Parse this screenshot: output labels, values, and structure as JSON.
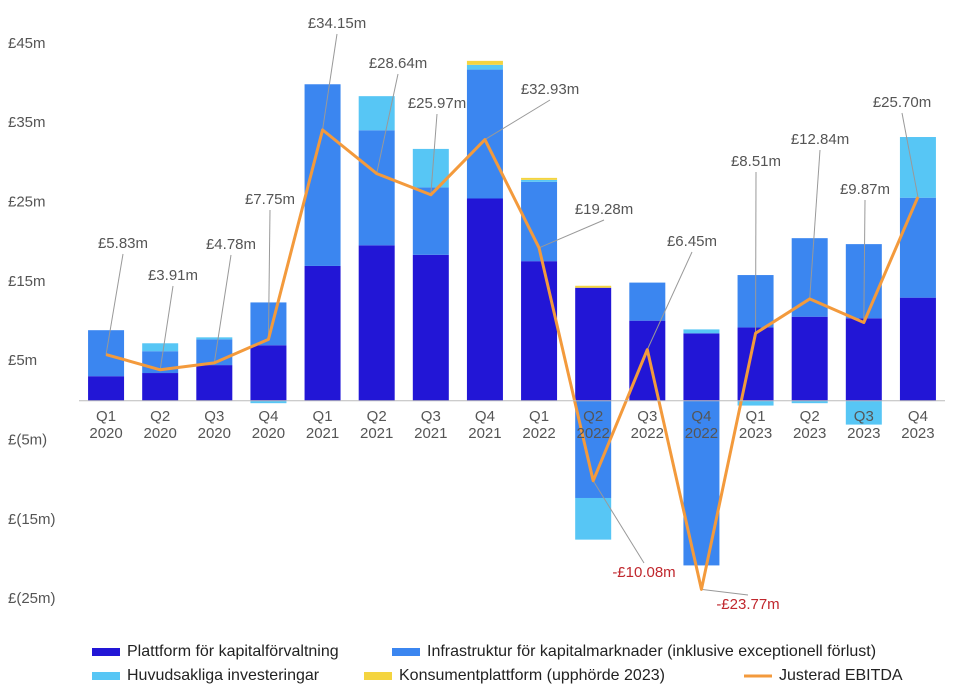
{
  "chart_data": {
    "type": "stacked-bar-line",
    "categories": [
      "Q1 2020",
      "Q2 2020",
      "Q3 2020",
      "Q4 2020",
      "Q1 2021",
      "Q2 2021",
      "Q3 2021",
      "Q4 2021",
      "Q1 2022",
      "Q2 2022",
      "Q3 2022",
      "Q4 2022",
      "Q1 2023",
      "Q2 2023",
      "Q3 2023",
      "Q4 2023"
    ],
    "series": [
      {
        "name": "Plattform för kapitalförvaltning",
        "color": "#2216d6",
        "values": [
          3.1,
          3.5,
          4.5,
          7.0,
          17.0,
          19.6,
          18.4,
          25.5,
          17.6,
          14.25,
          10.1,
          8.5,
          9.25,
          10.6,
          10.4,
          13.0
        ]
      },
      {
        "name": "Infrastruktur för kapitalmarknader (inklusive exceptionell förlust)",
        "color": "#3b86f0",
        "values": [
          5.8,
          2.75,
          3.25,
          5.4,
          22.9,
          14.5,
          8.5,
          16.25,
          10.0,
          -12.25,
          4.8,
          -20.75,
          6.6,
          9.9,
          9.35,
          12.6
        ]
      },
      {
        "name": "Huvudsakliga investeringar",
        "color": "#57c6f5",
        "values": [
          0,
          1.0,
          0.25,
          -0.3,
          0,
          4.3,
          4.85,
          0.6,
          0.25,
          -5.25,
          0,
          0.5,
          -0.6,
          -0.3,
          -3.0,
          7.65
        ]
      },
      {
        "name": "Konsumentplattform (upphörde 2023)",
        "color": "#f4d43f",
        "values": [
          0,
          0,
          0,
          0,
          0,
          0,
          0,
          0.5,
          0.25,
          0.25,
          0,
          0,
          0,
          0,
          0,
          0
        ]
      },
      {
        "name": "Justerad EBITDA",
        "color": "#f39a3c",
        "kind": "line",
        "values": [
          5.83,
          3.91,
          4.78,
          7.75,
          34.15,
          28.64,
          25.97,
          32.93,
          19.28,
          -10.08,
          6.45,
          -23.77,
          8.51,
          12.84,
          9.87,
          25.7
        ],
        "value_labels": [
          "£5.83m",
          "£3.91m",
          "£4.78m",
          "£7.75m",
          "£34.15m",
          "£28.64m",
          "£25.97m",
          "£32.93m",
          "£19.28m",
          "-£10.08m",
          "£6.45m",
          "-£23.77m",
          "£8.51m",
          "£12.84m",
          "£9.87m",
          "£25.70m"
        ]
      }
    ],
    "ylim": [
      -27,
      48
    ],
    "yticks": [
      {
        "value": 45,
        "label": "£45m"
      },
      {
        "value": 35,
        "label": "£35m"
      },
      {
        "value": 25,
        "label": "£25m"
      },
      {
        "value": 15,
        "label": "£15m"
      },
      {
        "value": 5,
        "label": "£5m"
      },
      {
        "value": -5,
        "label": "£(5m)"
      },
      {
        "value": -15,
        "label": "£(15m)"
      },
      {
        "value": -25,
        "label": "£(25m)"
      }
    ],
    "grid": false
  }
}
